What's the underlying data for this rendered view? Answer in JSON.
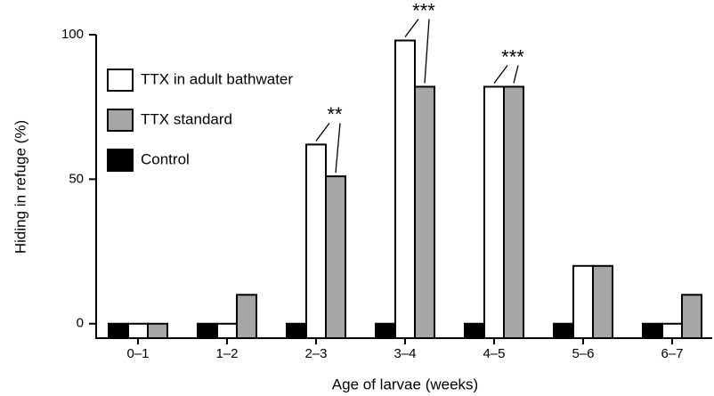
{
  "chart_data": {
    "type": "bar",
    "x_label": "Age of larvae (weeks)",
    "y_label": "Hiding in refuge (%)",
    "categories": [
      "0–1",
      "1–2",
      "2–3",
      "3–4",
      "4–5",
      "5–6",
      "6–7"
    ],
    "series": [
      {
        "name": "TTX in adult bathwater",
        "color": "#ffffff",
        "values": [
          0,
          0,
          62,
          98,
          82,
          20,
          0
        ]
      },
      {
        "name": "TTX standard",
        "color": "#a6a6a6",
        "values": [
          0,
          10,
          51,
          82,
          82,
          20,
          10
        ]
      },
      {
        "name": "Control",
        "color": "#000000",
        "values": [
          0,
          0,
          0,
          0,
          0,
          0,
          0
        ]
      }
    ],
    "ylim": [
      -5,
      100
    ],
    "yticks": [
      0,
      50,
      100
    ],
    "legend": "upper left",
    "annotations": [
      {
        "text": "**",
        "category": "2–3"
      },
      {
        "text": "***",
        "category": "3–4"
      },
      {
        "text": "***",
        "category": "4–5"
      }
    ]
  }
}
